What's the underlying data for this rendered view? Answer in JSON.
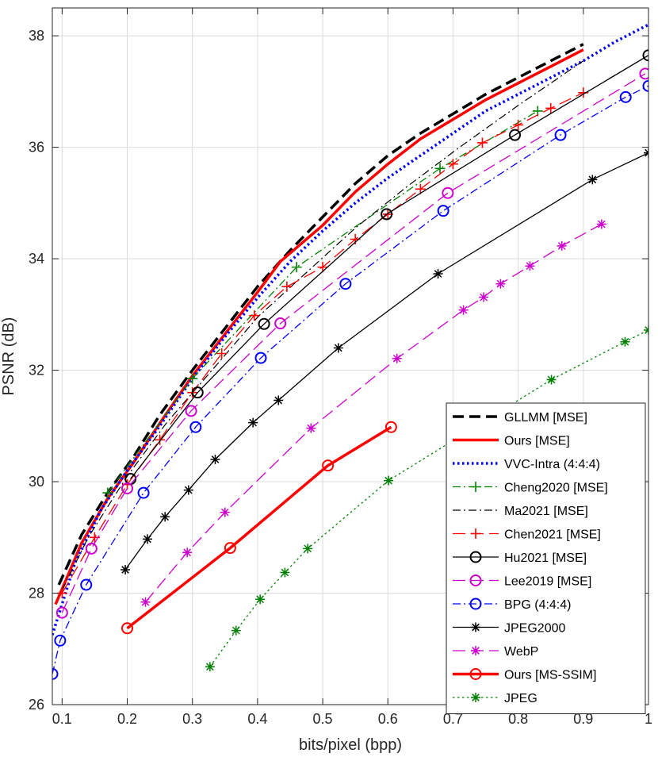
{
  "chart_data": {
    "type": "line",
    "title": "",
    "xlabel": "bits/pixel (bpp)",
    "ylabel": "PSNR (dB)",
    "xlim": [
      0.085,
      1.0
    ],
    "ylim": [
      26,
      38.5
    ],
    "xticks": [
      0.1,
      0.2,
      0.3,
      0.4,
      0.5,
      0.6,
      0.7,
      0.8,
      0.9,
      1
    ],
    "xtick_labels": [
      "0.1",
      "0.2",
      "0.3",
      "0.4",
      "0.5",
      "0.6",
      "0.7",
      "0.8",
      "0.9",
      "1"
    ],
    "yticks": [
      26,
      28,
      30,
      32,
      34,
      36,
      38
    ],
    "ytick_labels": [
      "26",
      "28",
      "30",
      "32",
      "34",
      "36",
      "38"
    ],
    "grid": true,
    "legend_position": "bottom-right",
    "series": [
      {
        "name": "GLLMM [MSE]",
        "color": "#000000",
        "dash": "dashed",
        "width": 3.5,
        "marker": "none",
        "x": [
          0.095,
          0.13,
          0.17,
          0.21,
          0.25,
          0.3,
          0.35,
          0.4,
          0.45,
          0.5,
          0.55,
          0.6,
          0.65,
          0.7,
          0.75,
          0.8,
          0.85,
          0.9
        ],
        "y": [
          28.15,
          29.05,
          29.8,
          30.45,
          31.2,
          32.0,
          32.75,
          33.5,
          34.15,
          34.75,
          35.35,
          35.85,
          36.25,
          36.6,
          36.95,
          37.25,
          37.55,
          37.85
        ]
      },
      {
        "name": "Ours [MSE]",
        "color": "#ff0000",
        "dash": "solid",
        "width": 3.5,
        "marker": "none",
        "x": [
          0.09,
          0.13,
          0.17,
          0.21,
          0.25,
          0.3,
          0.35,
          0.4,
          0.435,
          0.5,
          0.55,
          0.6,
          0.65,
          0.7,
          0.75,
          0.8,
          0.85,
          0.9
        ],
        "y": [
          27.8,
          28.9,
          29.7,
          30.35,
          31.05,
          31.9,
          32.65,
          33.4,
          33.95,
          34.6,
          35.2,
          35.7,
          36.15,
          36.5,
          36.85,
          37.15,
          37.45,
          37.75
        ]
      },
      {
        "name": "VVC-Intra (4:4:4)",
        "color": "#0000ff",
        "dash": "dotted",
        "width": 3.5,
        "marker": "none",
        "x": [
          0.085,
          0.12,
          0.16,
          0.2,
          0.25,
          0.3,
          0.35,
          0.4,
          0.45,
          0.5,
          0.55,
          0.6,
          0.65,
          0.7,
          0.75,
          0.8,
          0.85,
          0.9,
          0.95,
          1.0
        ],
        "y": [
          27.25,
          28.55,
          29.5,
          30.2,
          31.0,
          31.85,
          32.6,
          33.3,
          33.95,
          34.5,
          35.0,
          35.45,
          35.85,
          36.25,
          36.65,
          36.95,
          37.25,
          37.55,
          37.9,
          38.2
        ]
      },
      {
        "name": "Cheng2020 [MSE]",
        "color": "#008000",
        "dash": "dashdot",
        "width": 1.3,
        "marker": "plus",
        "x": [
          0.17,
          0.3,
          0.46,
          0.68,
          0.83
        ],
        "y": [
          29.8,
          31.85,
          33.85,
          35.62,
          36.65
        ]
      },
      {
        "name": "Ma2021 [MSE]",
        "color": "#000000",
        "dash": "dashdot",
        "width": 1.2,
        "marker": "none",
        "x": [
          0.1,
          0.14,
          0.2,
          0.26,
          0.33,
          0.4,
          0.47,
          0.55,
          0.63,
          0.71,
          0.8,
          0.9
        ],
        "y": [
          28.05,
          29.0,
          30.1,
          31.05,
          32.0,
          32.95,
          33.7,
          34.55,
          35.3,
          36.0,
          36.75,
          37.55
        ]
      },
      {
        "name": "Chen2021 [MSE]",
        "color": "#ff0000",
        "dash": "longdash",
        "width": 1.3,
        "marker": "plus",
        "x": [
          0.1,
          0.15,
          0.2,
          0.25,
          0.3,
          0.345,
          0.395,
          0.445,
          0.5,
          0.55,
          0.6,
          0.65,
          0.7,
          0.745,
          0.8,
          0.85,
          0.9
        ],
        "y": [
          28.0,
          29.0,
          29.95,
          30.75,
          31.6,
          32.3,
          32.98,
          33.5,
          33.85,
          34.35,
          34.8,
          35.25,
          35.7,
          36.08,
          36.4,
          36.7,
          36.98
        ]
      },
      {
        "name": "Hu2021 [MSE]",
        "color": "#000000",
        "dash": "solid",
        "width": 1.3,
        "marker": "circle",
        "x": [
          0.205,
          0.308,
          0.41,
          0.598,
          0.795,
          1.0
        ],
        "y": [
          30.05,
          31.6,
          32.83,
          34.8,
          36.22,
          37.65
        ]
      },
      {
        "name": "Lee2019 [MSE]",
        "color": "#cc00cc",
        "dash": "longdash",
        "width": 1.3,
        "marker": "circle",
        "x": [
          0.1,
          0.145,
          0.2,
          0.298,
          0.435,
          0.692,
          0.995
        ],
        "y": [
          27.65,
          28.8,
          29.88,
          31.27,
          32.84,
          35.18,
          37.32
        ]
      },
      {
        "name": "BPG (4:4:4)",
        "color": "#0000ff",
        "dash": "dashdot",
        "width": 1.3,
        "marker": "circle",
        "x": [
          0.085,
          0.097,
          0.137,
          0.225,
          0.305,
          0.405,
          0.535,
          0.685,
          0.865,
          0.965,
          1.0
        ],
        "y": [
          26.55,
          27.15,
          28.15,
          29.8,
          30.98,
          32.22,
          33.55,
          34.86,
          36.22,
          36.9,
          37.1
        ]
      },
      {
        "name": "JPEG2000",
        "color": "#000000",
        "dash": "solid",
        "width": 1.3,
        "marker": "asterisk",
        "x": [
          0.197,
          0.231,
          0.258,
          0.294,
          0.335,
          0.393,
          0.432,
          0.524,
          0.677,
          0.914,
          1.0
        ],
        "y": [
          28.42,
          28.97,
          29.37,
          29.85,
          30.4,
          31.06,
          31.46,
          32.4,
          33.73,
          35.42,
          35.9
        ]
      },
      {
        "name": "WebP",
        "color": "#cc00cc",
        "dash": "longdash",
        "width": 1.3,
        "marker": "asterisk",
        "x": [
          0.228,
          0.292,
          0.35,
          0.482,
          0.614,
          0.716,
          0.747,
          0.773,
          0.818,
          0.867,
          0.928
        ],
        "y": [
          27.84,
          28.73,
          29.45,
          30.96,
          32.21,
          33.08,
          33.31,
          33.55,
          33.87,
          34.23,
          34.62
        ]
      },
      {
        "name": "Ours [MS-SSIM]",
        "color": "#ff0000",
        "dash": "solid",
        "width": 3.5,
        "marker": "circle",
        "x": [
          0.2,
          0.358,
          0.508,
          0.605
        ],
        "y": [
          27.37,
          28.81,
          30.29,
          30.98
        ]
      },
      {
        "name": "JPEG",
        "color": "#008000",
        "dash": "dotted",
        "width": 1.3,
        "marker": "asterisk",
        "x": [
          0.327,
          0.367,
          0.404,
          0.442,
          0.477,
          0.601,
          0.851,
          0.964,
          1.0
        ],
        "y": [
          26.68,
          27.33,
          27.89,
          28.37,
          28.8,
          30.02,
          31.83,
          32.51,
          32.72
        ]
      }
    ]
  }
}
